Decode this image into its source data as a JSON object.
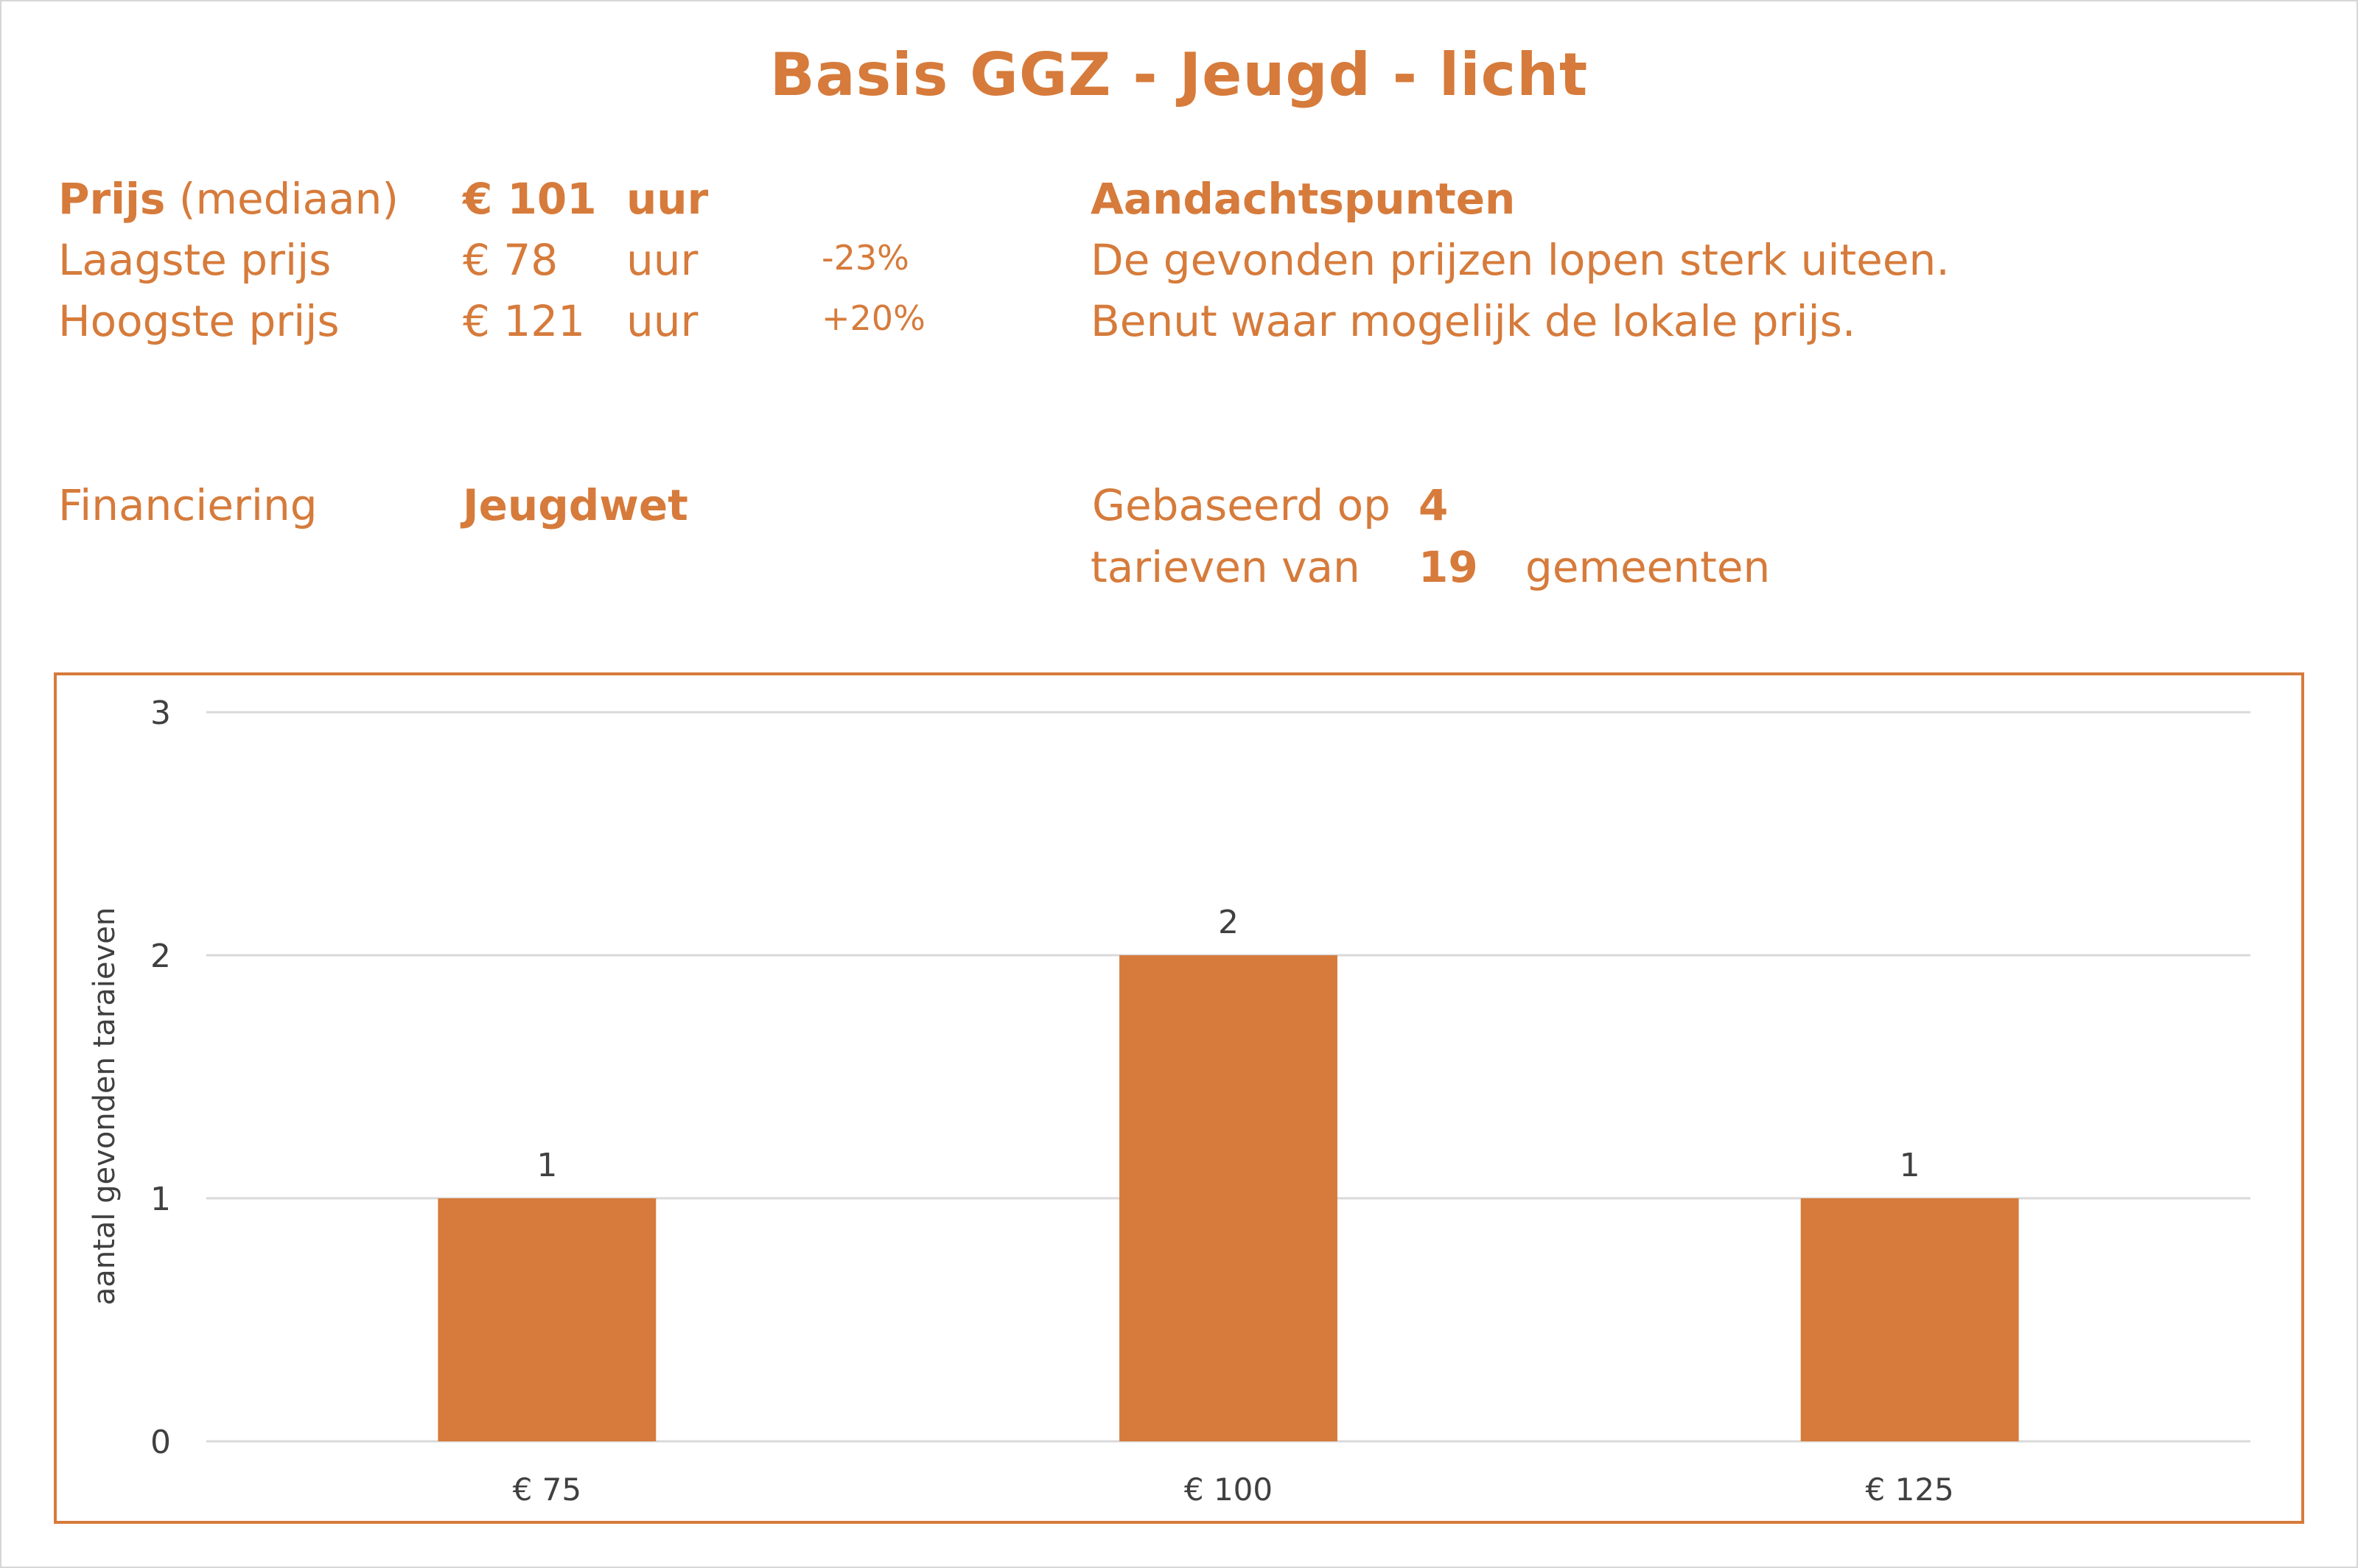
{
  "title": "Basis GGZ - Jeugd - licht",
  "prices": {
    "median_label": "Prijs",
    "median_suffix": "(mediaan)",
    "median_value": "€ 101",
    "median_unit": "uur",
    "lowest_label": "Laagste prijs",
    "lowest_value": "€ 78",
    "lowest_unit": "uur",
    "lowest_diff": "-23%",
    "highest_label": "Hoogste prijs",
    "highest_value": "€ 121",
    "highest_unit": "uur",
    "highest_diff": "+20%"
  },
  "notes": {
    "heading": "Aandachtspunten",
    "line1": "De gevonden prijzen lopen sterk uiteen.",
    "line2": "Benut waar mogelijk de lokale prijs."
  },
  "financing": {
    "label": "Financiering",
    "value": "Jeugdwet"
  },
  "basis": {
    "line1_text": "Gebaseerd op",
    "line1_number": "4",
    "line2_text": "tarieven van",
    "line2_number": "19",
    "line2_suffix": "gemeenten"
  },
  "colors": {
    "accent": "#D67B3B",
    "grid": "#d9d9d9",
    "axis_text": "#404040"
  },
  "chart_data": {
    "type": "bar",
    "categories": [
      "€ 75",
      "€ 100",
      "€ 125"
    ],
    "values": [
      1,
      2,
      1
    ],
    "data_labels": [
      "1",
      "2",
      "1"
    ],
    "title": "",
    "xlabel": "",
    "ylabel": "aantal gevonden taraieven",
    "ylim": [
      0,
      3
    ],
    "yticks": [
      0,
      1,
      2,
      3
    ],
    "grid": true,
    "legend": "none"
  }
}
